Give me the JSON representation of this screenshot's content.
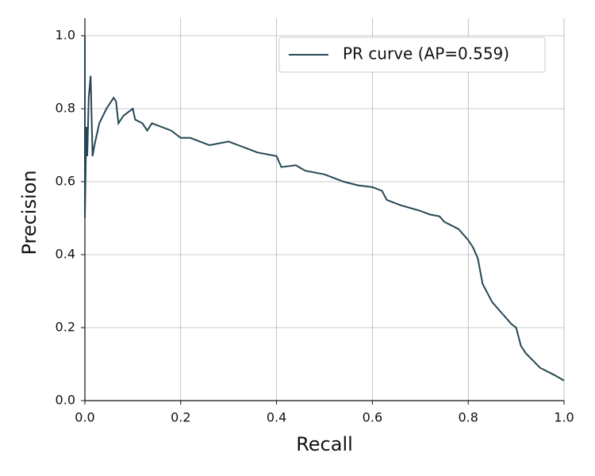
{
  "chart_data": {
    "type": "line",
    "xlabel": "Recall",
    "ylabel": "Precision",
    "x": [
      0,
      0,
      0.003,
      0.005,
      0.008,
      0.012,
      0.014,
      0.016,
      0.02,
      0.03,
      0.045,
      0.06,
      0.065,
      0.07,
      0.08,
      0.09,
      0.1,
      0.105,
      0.12,
      0.13,
      0.14,
      0.16,
      0.18,
      0.2,
      0.22,
      0.24,
      0.26,
      0.3,
      0.32,
      0.34,
      0.36,
      0.4,
      0.41,
      0.44,
      0.46,
      0.5,
      0.54,
      0.57,
      0.6,
      0.62,
      0.63,
      0.66,
      0.7,
      0.72,
      0.74,
      0.75,
      0.78,
      0.8,
      0.81,
      0.82,
      0.83,
      0.85,
      0.87,
      0.89,
      0.9,
      0.91,
      0.92,
      0.95,
      0.98,
      1.0
    ],
    "series": [
      {
        "name": "PR curve (AP=0.559)",
        "color": "#264653",
        "values": [
          1.0,
          0.5,
          0.75,
          0.67,
          0.83,
          0.89,
          0.78,
          0.67,
          0.7,
          0.76,
          0.8,
          0.83,
          0.82,
          0.76,
          0.78,
          0.79,
          0.8,
          0.77,
          0.76,
          0.74,
          0.76,
          0.75,
          0.74,
          0.72,
          0.72,
          0.71,
          0.7,
          0.71,
          0.7,
          0.69,
          0.68,
          0.67,
          0.64,
          0.645,
          0.63,
          0.62,
          0.6,
          0.59,
          0.585,
          0.575,
          0.55,
          0.535,
          0.52,
          0.51,
          0.505,
          0.49,
          0.47,
          0.44,
          0.42,
          0.39,
          0.32,
          0.27,
          0.24,
          0.21,
          0.2,
          0.15,
          0.13,
          0.09,
          0.07,
          0.055
        ]
      }
    ],
    "xlim": [
      0,
      1
    ],
    "ylim": [
      0,
      1
    ],
    "xticks": [
      {
        "value": 0,
        "label": "0.0"
      },
      0.2,
      0.4,
      0.6,
      0.8,
      {
        "value": 1,
        "label": "1.0"
      }
    ],
    "yticks": [
      {
        "value": 0,
        "label": "0.0"
      },
      0.2,
      0.4,
      0.6,
      0.8,
      {
        "value": 1,
        "label": "1.0"
      }
    ],
    "grid": true,
    "legend": "upper right"
  }
}
